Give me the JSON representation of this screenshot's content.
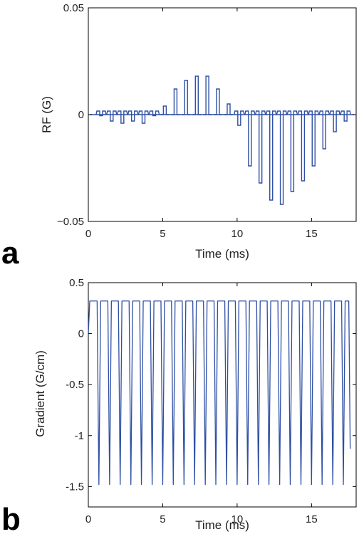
{
  "chart_data": [
    {
      "type": "line",
      "panel_label": "a",
      "title": "",
      "xlabel": "Time (ms)",
      "ylabel": "RF (G)",
      "xlim": [
        0,
        18
      ],
      "ylim": [
        -0.05,
        0.05
      ],
      "x_ticks": [
        0,
        5,
        10,
        15
      ],
      "x_tick_labels": [
        "0",
        "5",
        "10",
        "15"
      ],
      "y_ticks": [
        0.05,
        0,
        -0.05
      ],
      "y_tick_labels": [
        "0.05",
        "0",
        "−0.05"
      ],
      "grid": false,
      "color": "#2E4FA3",
      "series": [
        {
          "pulse_times": [
            0.86,
            1.57,
            2.29,
            3.0,
            3.71,
            4.43,
            5.14,
            5.86,
            6.57,
            7.29,
            8.0,
            8.71,
            9.43,
            10.14,
            10.86,
            11.57,
            12.29,
            13.0,
            13.71,
            14.43,
            15.14,
            15.86,
            16.57,
            17.29
          ],
          "pulse_values": [
            -0.0005,
            -0.003,
            -0.004,
            -0.003,
            -0.004,
            -0.0005,
            0.004,
            0.012,
            0.016,
            0.018,
            0.018,
            0.012,
            0.005,
            -0.005,
            -0.024,
            -0.032,
            -0.04,
            -0.042,
            -0.036,
            -0.031,
            -0.024,
            -0.016,
            -0.008,
            -0.003
          ]
        }
      ]
    },
    {
      "type": "line",
      "panel_label": "b",
      "title": "",
      "xlabel": "Time (ms)",
      "ylabel": "Gradient (G/cm)",
      "xlim": [
        0,
        18
      ],
      "ylim": [
        -1.7,
        0.5
      ],
      "x_ticks": [
        0,
        5,
        10,
        15
      ],
      "x_tick_labels": [
        "0",
        "5",
        "10",
        "15"
      ],
      "y_ticks": [
        0.5,
        0,
        -0.5,
        -1,
        -1.5
      ],
      "y_tick_labels": [
        "0.5",
        "0",
        "-0.5",
        "-1",
        "-1.5"
      ],
      "grid": false,
      "color": "#2E4FA3",
      "series": [
        {
          "plateau_value": 0.32,
          "dip_value": -1.48,
          "end_value": -1.13,
          "dip_times": [
            0.71,
            1.43,
            2.14,
            2.86,
            3.57,
            4.29,
            5.0,
            5.71,
            6.43,
            7.14,
            7.86,
            8.57,
            9.29,
            10.0,
            10.71,
            11.43,
            12.14,
            12.86,
            13.57,
            14.29,
            15.0,
            15.71,
            16.43,
            17.14
          ]
        }
      ]
    }
  ]
}
